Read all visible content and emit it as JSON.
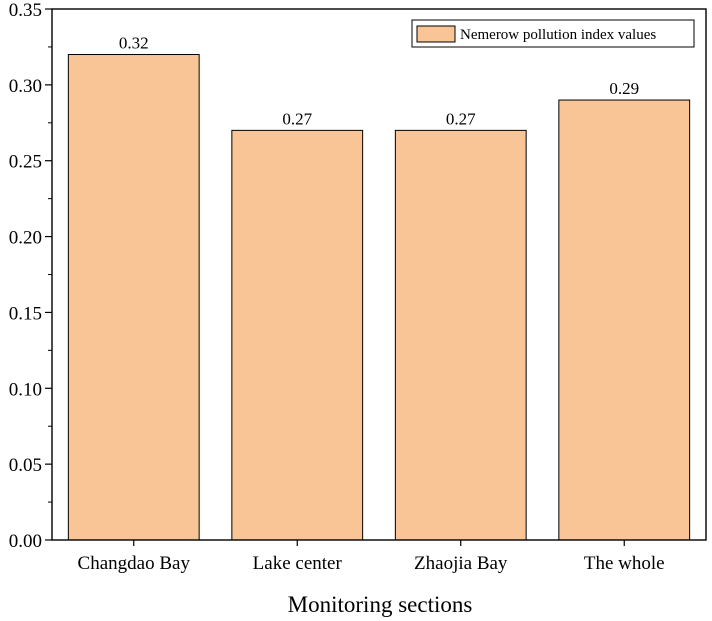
{
  "chart_data": {
    "type": "bar",
    "categories": [
      "Changdao Bay",
      "Lake center",
      "Zhaojia Bay",
      "The whole"
    ],
    "series": [
      {
        "name": "Nemerow pollution index values",
        "values": [
          0.32,
          0.27,
          0.27,
          0.29
        ],
        "color": "#f9c597"
      }
    ],
    "data_labels": [
      "0.32",
      "0.27",
      "0.27",
      "0.29"
    ],
    "title": "",
    "xlabel": "Monitoring sections",
    "ylabel": "",
    "ylim": [
      0,
      0.35
    ],
    "yticks": [
      "0.00",
      "0.05",
      "0.10",
      "0.15",
      "0.20",
      "0.25",
      "0.30",
      "0.35"
    ],
    "grid": false,
    "legend": {
      "position": "top-right",
      "entries": [
        "Nemerow pollution index values"
      ]
    }
  }
}
